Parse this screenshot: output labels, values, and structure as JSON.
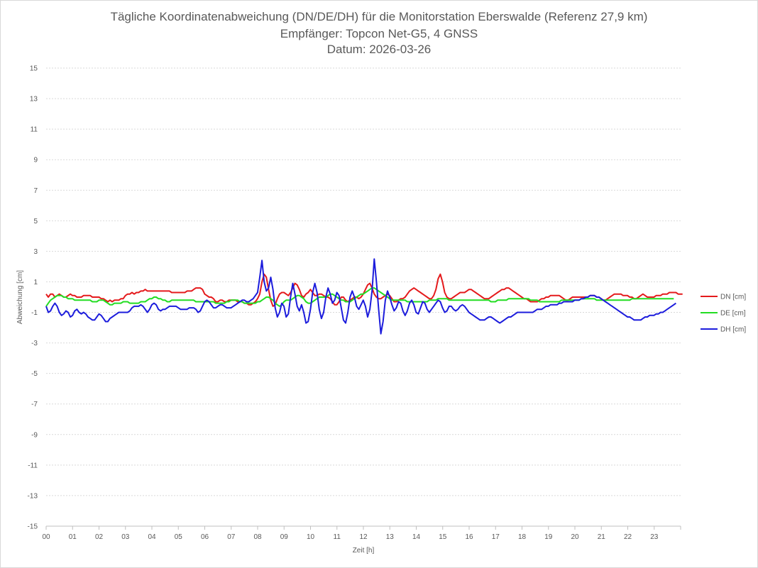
{
  "chart_data": {
    "type": "line",
    "title": "Tägliche Koordinatenabweichung (DN/DE/DH) für die Monitorstation Eberswalde (Referenz 27,9 km)",
    "subtitle_lines": [
      "Empfänger: Topcon Net-G5, 4 GNSS",
      "Datum: 2026-03-26"
    ],
    "xlabel": "Zeit [h]",
    "ylabel": "Abweichung [cm]",
    "x_ticks": [
      "00",
      "01",
      "02",
      "03",
      "04",
      "05",
      "06",
      "07",
      "08",
      "09",
      "10",
      "11",
      "12",
      "13",
      "14",
      "15",
      "16",
      "17",
      "18",
      "19",
      "20",
      "21",
      "22",
      "23"
    ],
    "y_ticks": [
      "15",
      "13",
      "11",
      "9",
      "7",
      "5",
      "3",
      "1",
      "-1",
      "-3",
      "-5",
      "-7",
      "-9",
      "-11",
      "-13",
      "-15"
    ],
    "xlim": [
      0,
      24
    ],
    "ylim": [
      -15,
      15
    ],
    "grid": true,
    "legend_position": "right",
    "series": [
      {
        "name": "DN [cm]",
        "color": "#e41a1c",
        "sample_interval_h": 0.0833,
        "values": [
          0.2,
          0.0,
          0.2,
          0.2,
          0.0,
          0.1,
          0.2,
          0.1,
          0.0,
          0.0,
          0.1,
          0.2,
          0.1,
          0.1,
          0.0,
          0.0,
          0.0,
          0.1,
          0.1,
          0.1,
          0.1,
          0.0,
          0.0,
          0.0,
          0.0,
          -0.1,
          -0.1,
          -0.2,
          -0.3,
          -0.2,
          -0.3,
          -0.2,
          -0.2,
          -0.2,
          -0.1,
          -0.1,
          0.1,
          0.2,
          0.2,
          0.3,
          0.2,
          0.3,
          0.3,
          0.4,
          0.4,
          0.5,
          0.4,
          0.4,
          0.4,
          0.4,
          0.4,
          0.4,
          0.4,
          0.4,
          0.4,
          0.4,
          0.4,
          0.3,
          0.3,
          0.3,
          0.3,
          0.3,
          0.3,
          0.3,
          0.4,
          0.4,
          0.4,
          0.5,
          0.6,
          0.6,
          0.6,
          0.5,
          0.2,
          0.1,
          0.0,
          0.0,
          -0.1,
          -0.3,
          -0.3,
          -0.2,
          -0.2,
          -0.3,
          -0.3,
          -0.2,
          -0.2,
          -0.2,
          -0.2,
          -0.3,
          -0.3,
          -0.3,
          -0.4,
          -0.4,
          -0.5,
          -0.5,
          -0.4,
          -0.3,
          -0.1,
          0.2,
          1.0,
          1.5,
          1.3,
          0.5,
          -0.2,
          -0.6,
          -0.5,
          -0.1,
          0.2,
          0.3,
          0.3,
          0.2,
          0.1,
          0.3,
          0.6,
          0.9,
          0.8,
          0.5,
          0.1,
          0.0,
          0.2,
          0.3,
          0.5,
          0.3,
          0.1,
          0.1,
          0.2,
          0.2,
          0.1,
          0.0,
          0.0,
          -0.1,
          -0.3,
          -0.5,
          -0.5,
          -0.3,
          0.0,
          0.0,
          -0.2,
          -0.3,
          -0.2,
          -0.1,
          0.0,
          0.0,
          -0.1,
          0.0,
          0.2,
          0.5,
          0.8,
          0.9,
          0.6,
          0.2,
          0.0,
          -0.1,
          -0.1,
          0.0,
          0.1,
          0.2,
          0.1,
          -0.1,
          -0.3,
          -0.3,
          -0.2,
          -0.1,
          -0.1,
          0.0,
          0.2,
          0.4,
          0.5,
          0.6,
          0.5,
          0.4,
          0.3,
          0.2,
          0.1,
          0.0,
          -0.1,
          -0.1,
          0.1,
          0.5,
          1.2,
          1.5,
          1.0,
          0.3,
          0.0,
          -0.1,
          -0.1,
          0.0,
          0.1,
          0.2,
          0.3,
          0.3,
          0.3,
          0.4,
          0.5,
          0.5,
          0.4,
          0.3,
          0.2,
          0.1,
          0.0,
          -0.1,
          -0.1,
          -0.1,
          0.0,
          0.1,
          0.2,
          0.3,
          0.4,
          0.5,
          0.5,
          0.6,
          0.6,
          0.5,
          0.4,
          0.3,
          0.2,
          0.1,
          0.0,
          -0.1,
          -0.1,
          -0.2,
          -0.3,
          -0.3,
          -0.3,
          -0.3,
          -0.2,
          -0.1,
          -0.1,
          0.0,
          0.0,
          0.1,
          0.1,
          0.1,
          0.1,
          0.1,
          0.0,
          -0.1,
          -0.2,
          -0.2,
          -0.1,
          0.0,
          0.0,
          0.0,
          0.0,
          0.0,
          0.0,
          0.0,
          0.0,
          0.1,
          0.1,
          0.1,
          0.0,
          0.0,
          -0.1,
          -0.2,
          -0.2,
          -0.1,
          0.0,
          0.1,
          0.2,
          0.2,
          0.2,
          0.2,
          0.1,
          0.1,
          0.1,
          0.0,
          0.0,
          -0.1,
          -0.1,
          0.0,
          0.1,
          0.2,
          0.1,
          0.0,
          0.0,
          0.0,
          0.0,
          0.1,
          0.1,
          0.1,
          0.2,
          0.2,
          0.2,
          0.3,
          0.3,
          0.3,
          0.3,
          0.2,
          0.2,
          0.2
        ]
      },
      {
        "name": "DE [cm]",
        "color": "#22dd22",
        "sample_interval_h": 0.0833,
        "values": [
          -0.6,
          -0.4,
          -0.2,
          -0.1,
          0.0,
          0.1,
          0.1,
          0.1,
          0.0,
          0.0,
          -0.1,
          -0.1,
          -0.1,
          -0.2,
          -0.2,
          -0.2,
          -0.2,
          -0.2,
          -0.2,
          -0.2,
          -0.2,
          -0.3,
          -0.3,
          -0.3,
          -0.2,
          -0.2,
          -0.2,
          -0.3,
          -0.4,
          -0.5,
          -0.5,
          -0.4,
          -0.4,
          -0.4,
          -0.4,
          -0.3,
          -0.3,
          -0.3,
          -0.4,
          -0.4,
          -0.4,
          -0.4,
          -0.4,
          -0.3,
          -0.3,
          -0.3,
          -0.2,
          -0.1,
          -0.1,
          0.0,
          0.0,
          -0.1,
          -0.1,
          -0.2,
          -0.2,
          -0.3,
          -0.3,
          -0.2,
          -0.2,
          -0.2,
          -0.2,
          -0.2,
          -0.2,
          -0.2,
          -0.2,
          -0.2,
          -0.2,
          -0.2,
          -0.3,
          -0.3,
          -0.3,
          -0.3,
          -0.3,
          -0.3,
          -0.3,
          -0.3,
          -0.3,
          -0.4,
          -0.4,
          -0.4,
          -0.4,
          -0.4,
          -0.3,
          -0.3,
          -0.2,
          -0.2,
          -0.2,
          -0.2,
          -0.3,
          -0.3,
          -0.4,
          -0.4,
          -0.4,
          -0.4,
          -0.4,
          -0.4,
          -0.3,
          -0.3,
          -0.2,
          -0.1,
          0.0,
          0.0,
          -0.1,
          -0.2,
          -0.4,
          -0.5,
          -0.6,
          -0.5,
          -0.3,
          -0.2,
          -0.2,
          -0.2,
          -0.1,
          0.0,
          0.1,
          0.1,
          0.0,
          -0.1,
          -0.3,
          -0.4,
          -0.4,
          -0.3,
          -0.2,
          -0.1,
          0.0,
          0.0,
          0.0,
          0.0,
          0.1,
          0.2,
          0.2,
          0.1,
          0.0,
          -0.1,
          -0.2,
          -0.2,
          -0.3,
          -0.3,
          -0.3,
          -0.2,
          -0.1,
          0.0,
          0.1,
          0.2,
          0.2,
          0.3,
          0.4,
          0.5,
          0.6,
          0.6,
          0.5,
          0.4,
          0.3,
          0.2,
          0.1,
          0.0,
          -0.1,
          -0.2,
          -0.2,
          -0.2,
          -0.2,
          -0.2,
          -0.2,
          -0.2,
          -0.3,
          -0.3,
          -0.3,
          -0.3,
          -0.3,
          -0.3,
          -0.3,
          -0.3,
          -0.3,
          -0.3,
          -0.2,
          -0.2,
          -0.2,
          -0.2,
          -0.1,
          -0.1,
          -0.1,
          -0.1,
          -0.1,
          -0.2,
          -0.2,
          -0.2,
          -0.2,
          -0.2,
          -0.2,
          -0.2,
          -0.2,
          -0.2,
          -0.2,
          -0.2,
          -0.2,
          -0.2,
          -0.2,
          -0.2,
          -0.2,
          -0.2,
          -0.2,
          -0.2,
          -0.3,
          -0.3,
          -0.3,
          -0.2,
          -0.2,
          -0.2,
          -0.2,
          -0.2,
          -0.1,
          -0.1,
          -0.1,
          -0.1,
          -0.1,
          -0.1,
          -0.1,
          -0.1,
          -0.1,
          -0.1,
          -0.2,
          -0.2,
          -0.2,
          -0.2,
          -0.3,
          -0.3,
          -0.3,
          -0.3,
          -0.3,
          -0.3,
          -0.3,
          -0.3,
          -0.3,
          -0.3,
          -0.2,
          -0.2,
          -0.2,
          -0.2,
          -0.2,
          -0.2,
          -0.2,
          -0.2,
          -0.2,
          -0.1,
          -0.1,
          -0.1,
          -0.1,
          -0.1,
          -0.1,
          -0.1,
          -0.2,
          -0.2,
          -0.2,
          -0.2,
          -0.2,
          -0.2,
          -0.2,
          -0.2,
          -0.2,
          -0.2,
          -0.2,
          -0.2,
          -0.2,
          -0.2,
          -0.2,
          -0.2,
          -0.1,
          -0.1,
          -0.1,
          -0.1,
          -0.1,
          -0.1,
          -0.1,
          -0.1,
          -0.1,
          -0.1,
          -0.1,
          -0.1,
          -0.1,
          -0.1,
          -0.1,
          -0.1,
          -0.1,
          -0.1,
          -0.1,
          -0.1
        ]
      },
      {
        "name": "DH [cm]",
        "color": "#1c1cdc",
        "sample_interval_h": 0.0833,
        "values": [
          -0.6,
          -1.0,
          -0.9,
          -0.6,
          -0.4,
          -0.6,
          -1.0,
          -1.2,
          -1.1,
          -0.9,
          -1.0,
          -1.3,
          -1.2,
          -0.9,
          -0.8,
          -1.0,
          -1.1,
          -1.0,
          -1.1,
          -1.3,
          -1.4,
          -1.5,
          -1.5,
          -1.3,
          -1.1,
          -1.2,
          -1.4,
          -1.6,
          -1.6,
          -1.4,
          -1.3,
          -1.2,
          -1.1,
          -1.0,
          -1.0,
          -1.0,
          -1.0,
          -1.0,
          -0.9,
          -0.7,
          -0.6,
          -0.6,
          -0.6,
          -0.5,
          -0.6,
          -0.8,
          -1.0,
          -0.8,
          -0.5,
          -0.4,
          -0.5,
          -0.8,
          -0.9,
          -0.8,
          -0.8,
          -0.7,
          -0.6,
          -0.6,
          -0.6,
          -0.6,
          -0.7,
          -0.8,
          -0.8,
          -0.8,
          -0.8,
          -0.7,
          -0.7,
          -0.7,
          -0.8,
          -1.0,
          -0.9,
          -0.6,
          -0.3,
          -0.2,
          -0.3,
          -0.5,
          -0.7,
          -0.7,
          -0.6,
          -0.5,
          -0.5,
          -0.6,
          -0.7,
          -0.7,
          -0.7,
          -0.6,
          -0.5,
          -0.4,
          -0.3,
          -0.2,
          -0.2,
          -0.3,
          -0.3,
          -0.2,
          -0.1,
          0.1,
          0.3,
          1.3,
          2.4,
          1.0,
          0.4,
          0.6,
          1.3,
          0.5,
          -0.7,
          -1.3,
          -1.0,
          -0.4,
          -0.6,
          -1.3,
          -1.1,
          0.0,
          0.9,
          0.2,
          -0.6,
          -0.9,
          -0.5,
          -1.0,
          -1.7,
          -1.6,
          -0.8,
          0.3,
          0.9,
          0.3,
          -0.8,
          -1.4,
          -1.0,
          0.0,
          0.6,
          0.2,
          -0.4,
          -0.2,
          0.3,
          0.1,
          -0.7,
          -1.5,
          -1.7,
          -1.0,
          0.0,
          0.4,
          0.0,
          -0.6,
          -0.8,
          -0.5,
          -0.2,
          -0.6,
          -1.3,
          -0.8,
          0.4,
          2.5,
          1.0,
          -0.8,
          -2.4,
          -1.6,
          -0.2,
          0.4,
          0.0,
          -0.5,
          -0.9,
          -0.7,
          -0.3,
          -0.4,
          -0.9,
          -1.2,
          -0.9,
          -0.4,
          -0.2,
          -0.5,
          -1.0,
          -1.1,
          -0.7,
          -0.3,
          -0.4,
          -0.8,
          -1.0,
          -0.8,
          -0.6,
          -0.4,
          -0.2,
          -0.3,
          -0.7,
          -1.0,
          -0.9,
          -0.6,
          -0.6,
          -0.8,
          -0.9,
          -0.8,
          -0.6,
          -0.5,
          -0.6,
          -0.8,
          -1.0,
          -1.1,
          -1.2,
          -1.3,
          -1.4,
          -1.5,
          -1.5,
          -1.5,
          -1.4,
          -1.3,
          -1.3,
          -1.4,
          -1.5,
          -1.6,
          -1.7,
          -1.6,
          -1.5,
          -1.4,
          -1.3,
          -1.3,
          -1.2,
          -1.1,
          -1.0,
          -1.0,
          -1.0,
          -1.0,
          -1.0,
          -1.0,
          -1.0,
          -1.0,
          -0.9,
          -0.8,
          -0.8,
          -0.8,
          -0.7,
          -0.6,
          -0.6,
          -0.5,
          -0.5,
          -0.5,
          -0.5,
          -0.4,
          -0.4,
          -0.3,
          -0.3,
          -0.3,
          -0.3,
          -0.3,
          -0.2,
          -0.2,
          -0.2,
          -0.1,
          -0.1,
          0.0,
          0.0,
          0.1,
          0.1,
          0.1,
          0.0,
          0.0,
          -0.1,
          -0.2,
          -0.3,
          -0.4,
          -0.5,
          -0.6,
          -0.7,
          -0.8,
          -0.9,
          -1.0,
          -1.1,
          -1.2,
          -1.3,
          -1.3,
          -1.4,
          -1.5,
          -1.5,
          -1.5,
          -1.5,
          -1.4,
          -1.3,
          -1.3,
          -1.2,
          -1.2,
          -1.2,
          -1.1,
          -1.1,
          -1.0,
          -1.0,
          -0.9,
          -0.8,
          -0.7,
          -0.6,
          -0.5,
          -0.4
        ]
      }
    ]
  }
}
